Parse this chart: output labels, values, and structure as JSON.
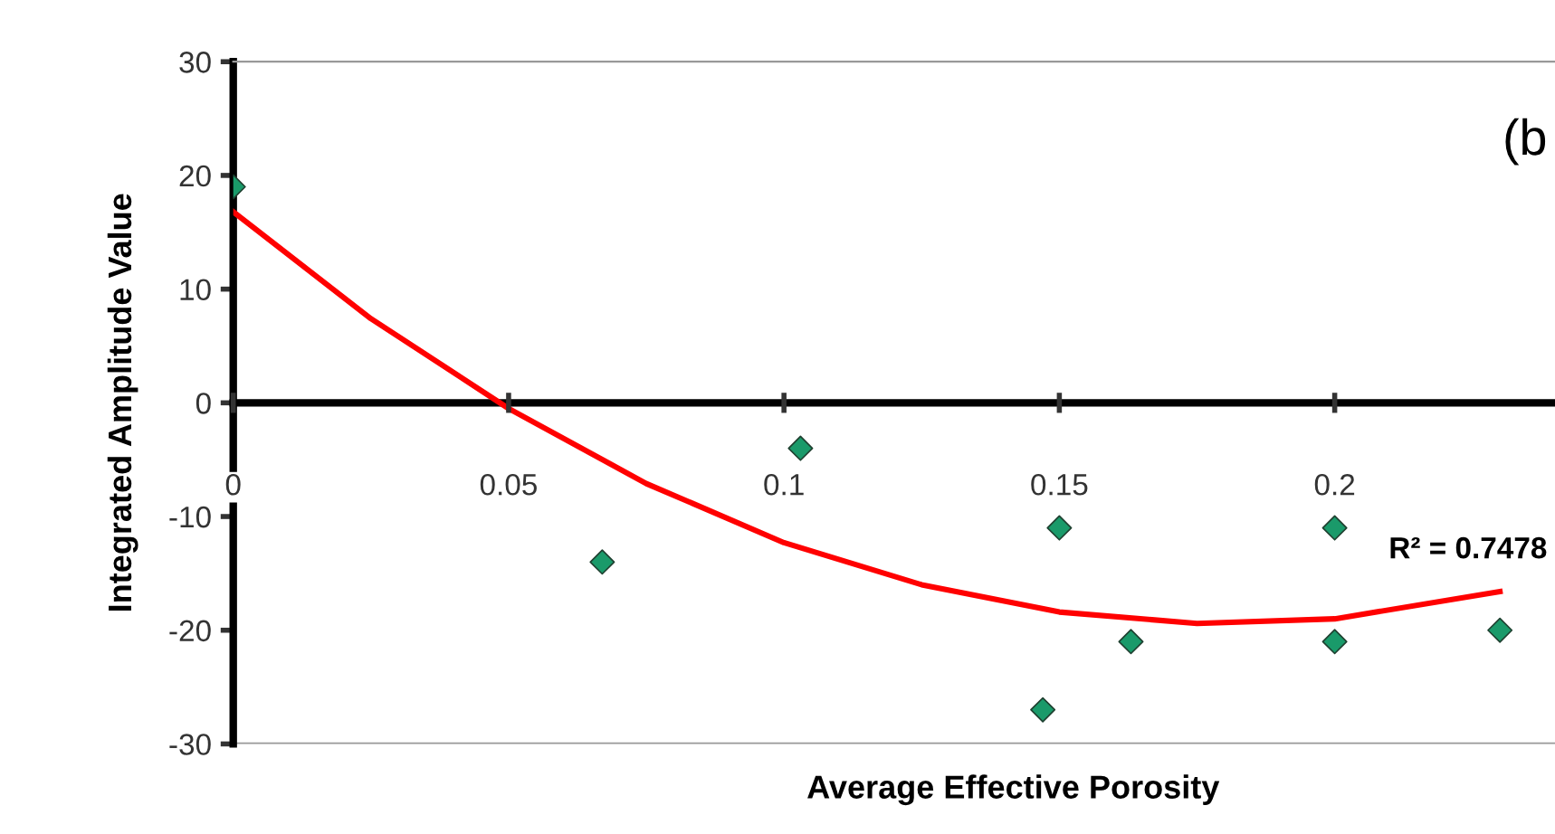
{
  "chart_data": {
    "type": "scatter",
    "xlabel": "Average Effective Porosity",
    "ylabel": "Integrated Amplitude Value",
    "annotations": [
      "(b",
      "R² = 0.7478"
    ],
    "series": [
      {
        "color": "#1a9a6a",
        "marker": "diamond",
        "x": [
          0,
          0.067,
          0.103,
          0.15,
          0.147,
          0.163,
          0.2,
          0.2,
          0.23
        ],
        "values": [
          19,
          -14,
          -4,
          -11,
          -27,
          -21,
          -11,
          -21,
          -20
        ]
      },
      {
        "type": "line",
        "color": "#ff0000",
        "marker": "none",
        "x": [
          0,
          0.025,
          0.05,
          0.075,
          0.1,
          0.125,
          0.15,
          0.175,
          0.2,
          0.23
        ],
        "values": [
          16.8,
          7.4,
          -0.5,
          -7.1,
          -12.3,
          -16.0,
          -18.4,
          -19.4,
          -19.0,
          -16.6
        ]
      }
    ],
    "xlim": [
      0,
      0.24
    ],
    "xticks": [
      0,
      0.05,
      0.1,
      0.15,
      0.2
    ],
    "ylim": [
      -30,
      30
    ],
    "yticks": [
      -30,
      -20,
      -10,
      0,
      10,
      20,
      30
    ],
    "grid": false,
    "legend": false
  }
}
